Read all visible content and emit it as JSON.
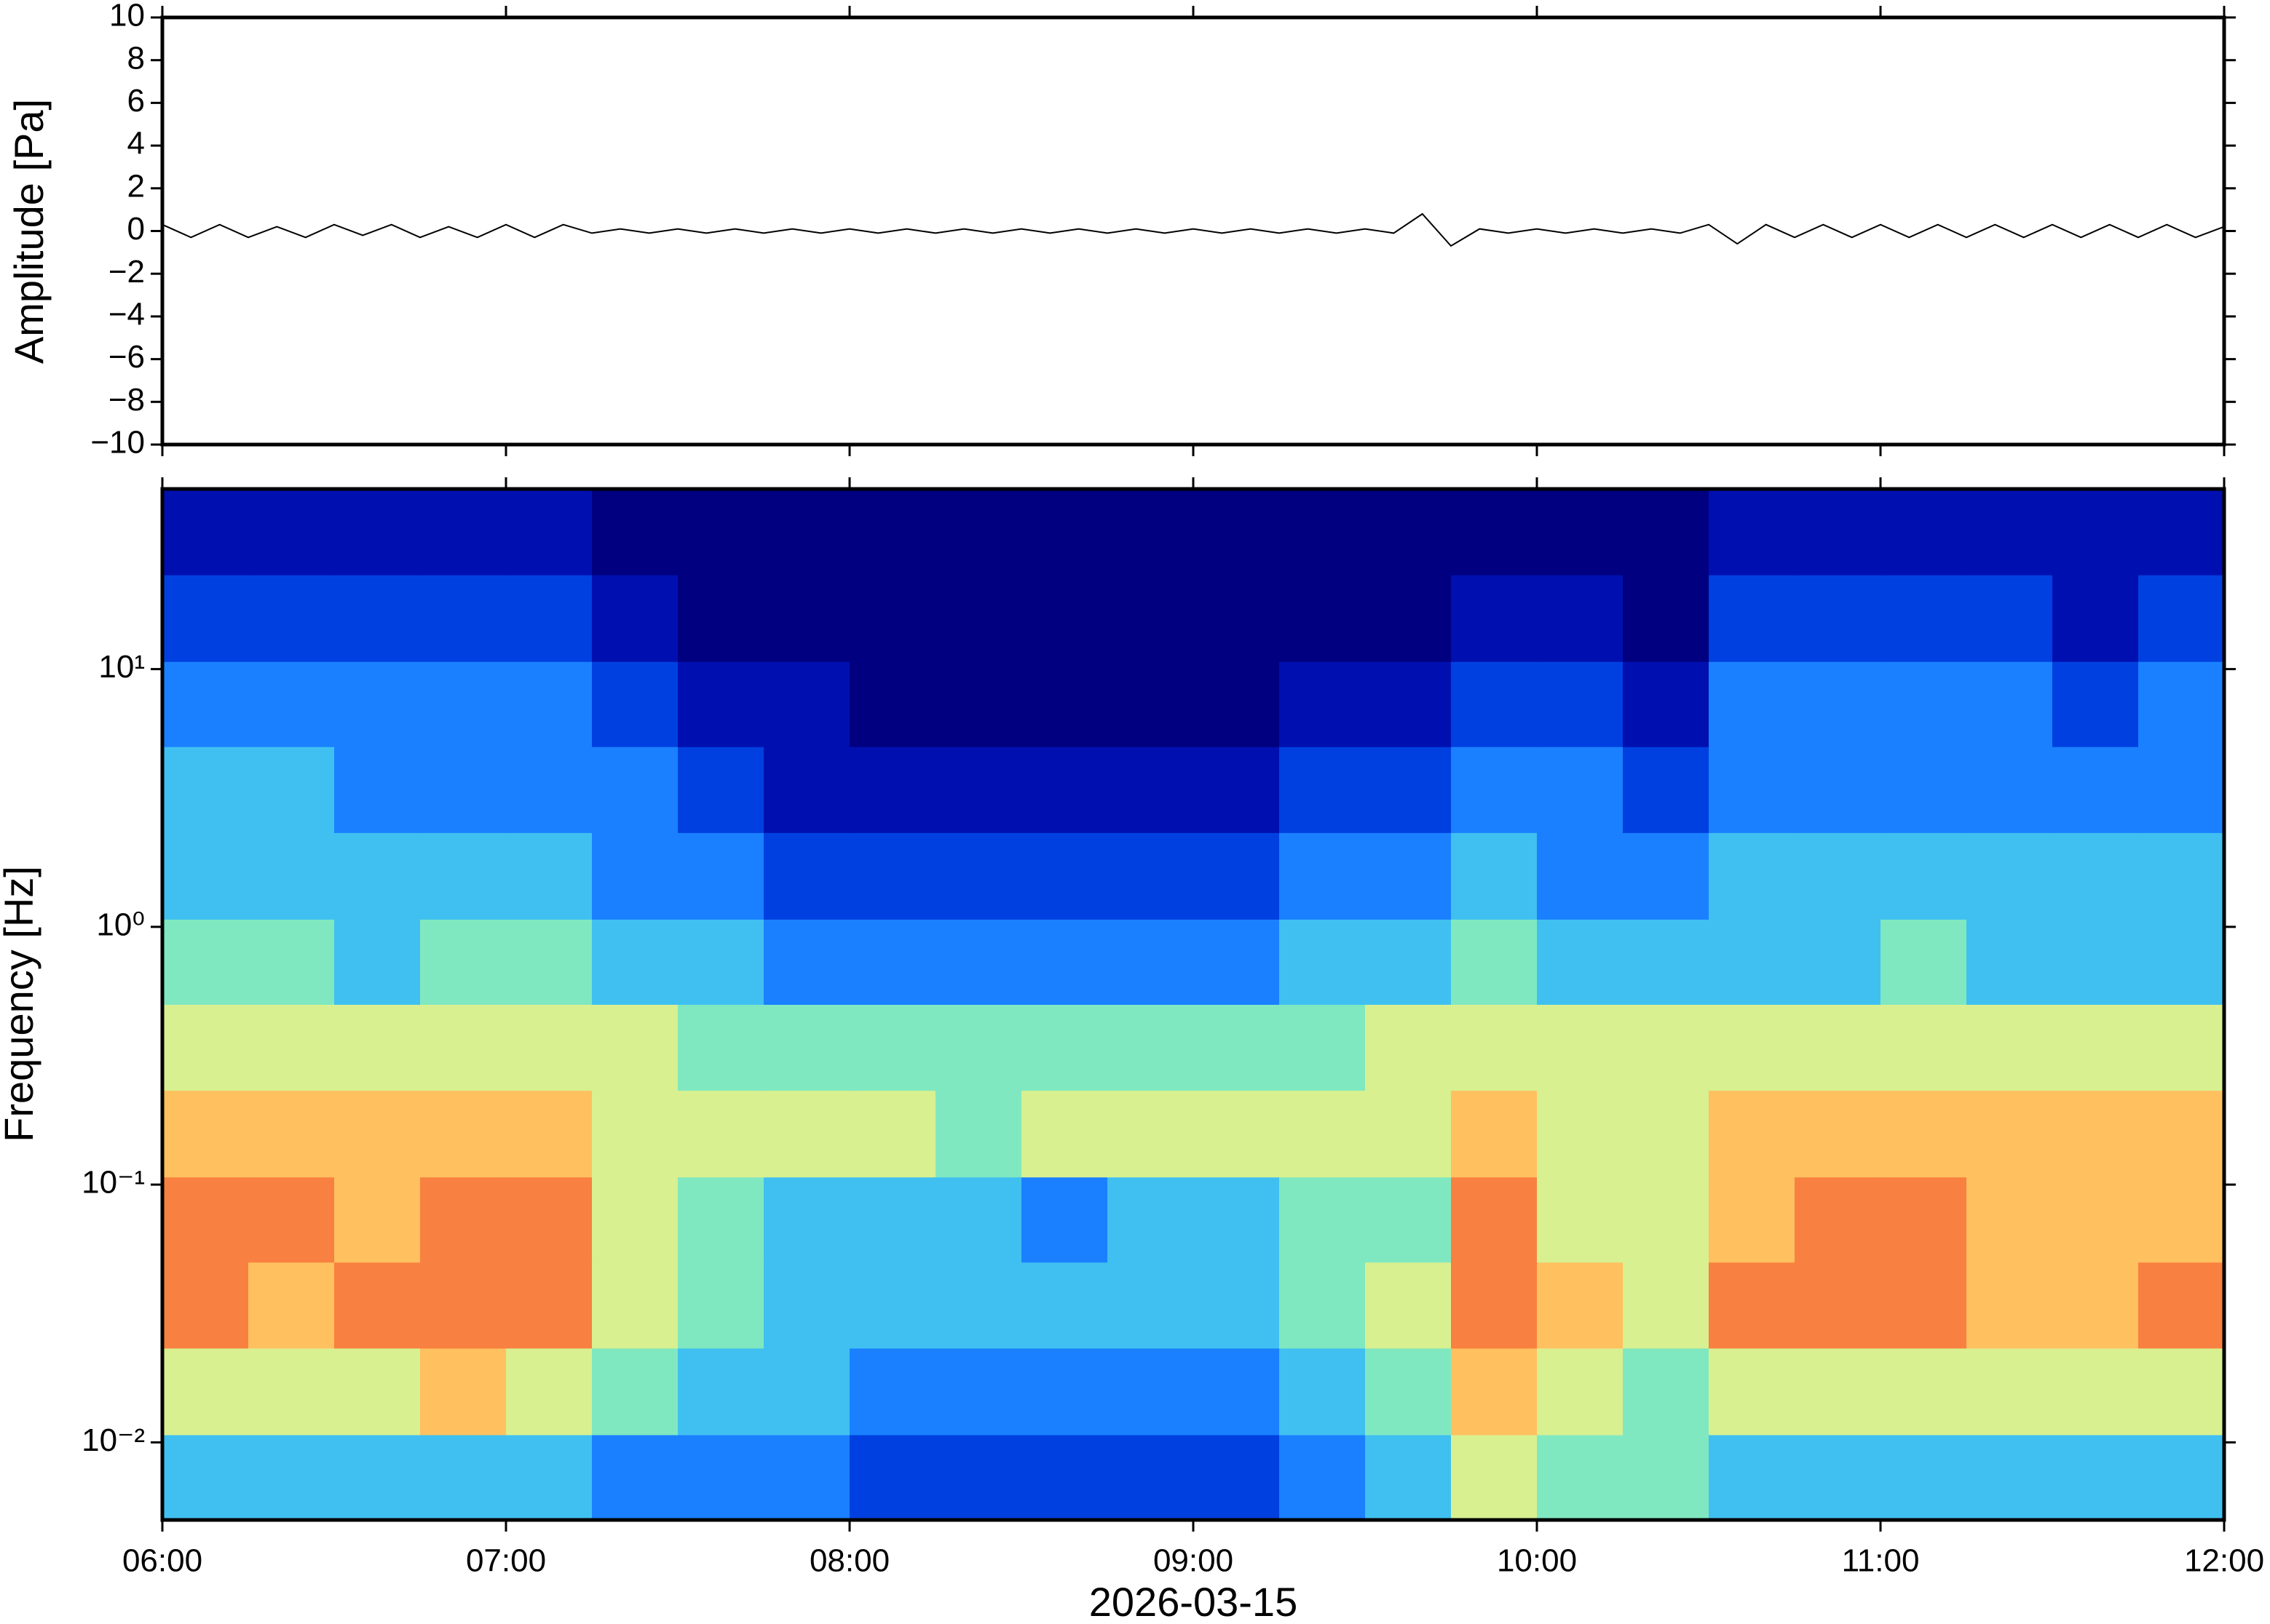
{
  "chart_data": [
    {
      "type": "line",
      "y_label": "Amplitude [Pa]",
      "color": "#000000",
      "x": [
        "06:00",
        "06:05",
        "06:10",
        "06:15",
        "06:20",
        "06:25",
        "06:30",
        "06:35",
        "06:40",
        "06:45",
        "06:50",
        "06:55",
        "07:00",
        "07:05",
        "07:10",
        "07:15",
        "07:20",
        "07:25",
        "07:30",
        "07:35",
        "07:40",
        "07:45",
        "07:50",
        "07:55",
        "08:00",
        "08:05",
        "08:10",
        "08:15",
        "08:20",
        "08:25",
        "08:30",
        "08:35",
        "08:40",
        "08:45",
        "08:50",
        "08:55",
        "09:00",
        "09:05",
        "09:10",
        "09:15",
        "09:20",
        "09:25",
        "09:30",
        "09:35",
        "09:40",
        "09:45",
        "09:50",
        "09:55",
        "10:00",
        "10:05",
        "10:10",
        "10:15",
        "10:20",
        "10:25",
        "10:30",
        "10:35",
        "10:40",
        "10:45",
        "10:50",
        "10:55",
        "11:00",
        "11:05",
        "11:10",
        "11:15",
        "11:20",
        "11:25",
        "11:30",
        "11:35",
        "11:40",
        "11:45",
        "11:50",
        "11:55",
        "12:00"
      ],
      "values": [
        0.3,
        -0.3,
        0.3,
        -0.3,
        0.2,
        -0.3,
        0.3,
        -0.2,
        0.3,
        -0.3,
        0.2,
        -0.3,
        0.3,
        -0.3,
        0.3,
        -0.1,
        0.1,
        -0.1,
        0.1,
        -0.1,
        0.1,
        -0.1,
        0.1,
        -0.1,
        0.1,
        -0.1,
        0.1,
        -0.1,
        0.1,
        -0.1,
        0.1,
        -0.1,
        0.1,
        -0.1,
        0.1,
        -0.1,
        0.1,
        -0.1,
        0.1,
        -0.1,
        0.1,
        -0.1,
        0.1,
        -0.1,
        0.8,
        -0.7,
        0.1,
        -0.1,
        0.1,
        -0.1,
        0.1,
        -0.1,
        0.1,
        -0.1,
        0.3,
        -0.6,
        0.3,
        -0.3,
        0.3,
        -0.3,
        0.3,
        -0.3,
        0.3,
        -0.3,
        0.3,
        -0.3,
        0.3,
        -0.3,
        0.3,
        -0.3,
        0.3,
        -0.3,
        0.2
      ],
      "xlim": [
        "06:00",
        "12:00"
      ],
      "ylim": [
        -10,
        10
      ],
      "yticks": [
        {
          "value": -10,
          "label": "−10"
        },
        {
          "value": -8,
          "label": "−8"
        },
        {
          "value": -6,
          "label": "−6"
        },
        {
          "value": -4,
          "label": "−4"
        },
        {
          "value": -2,
          "label": "−2"
        },
        0,
        2,
        4,
        6,
        8,
        10
      ]
    },
    {
      "type": "heatmap",
      "y_label": "Frequency [Hz]",
      "x_label": "2026-03-15",
      "log_y": true,
      "x": [
        "06:00",
        "06:15",
        "06:30",
        "06:45",
        "07:00",
        "07:15",
        "07:30",
        "07:45",
        "08:00",
        "08:15",
        "08:30",
        "08:45",
        "09:00",
        "09:15",
        "09:30",
        "09:45",
        "10:00",
        "10:15",
        "10:30",
        "10:45",
        "11:00",
        "11:15",
        "11:30",
        "11:45"
      ],
      "y_bins": [
        0.005,
        0.0107,
        0.0232,
        0.05,
        0.107,
        0.232,
        0.5,
        1.07,
        2.32,
        5,
        10.7,
        23.2,
        50
      ],
      "values": [
        [
          4,
          4,
          4,
          4,
          4,
          3,
          3,
          3,
          2,
          2,
          2,
          2,
          2,
          3,
          4,
          6,
          5,
          5,
          4,
          4,
          4,
          4,
          4,
          4
        ],
        [
          6,
          6,
          6,
          7,
          6,
          5,
          4,
          4,
          3,
          3,
          3,
          3,
          3,
          4,
          5,
          7,
          6,
          5,
          6,
          6,
          6,
          6,
          6,
          6
        ],
        [
          8,
          7,
          8,
          8,
          8,
          6,
          5,
          4,
          4,
          4,
          4,
          4,
          4,
          5,
          6,
          8,
          7,
          6,
          8,
          8,
          8,
          7,
          7,
          8
        ],
        [
          8,
          8,
          7,
          8,
          8,
          6,
          5,
          4,
          4,
          4,
          3,
          4,
          4,
          5,
          5,
          8,
          6,
          6,
          7,
          8,
          8,
          7,
          7,
          7
        ],
        [
          7,
          7,
          7,
          7,
          7,
          6,
          6,
          6,
          6,
          5,
          6,
          6,
          6,
          6,
          6,
          7,
          6,
          6,
          7,
          7,
          7,
          7,
          7,
          7
        ],
        [
          6,
          6,
          6,
          6,
          6,
          6,
          5,
          5,
          5,
          5,
          5,
          5,
          5,
          5,
          6,
          6,
          6,
          6,
          6,
          6,
          6,
          6,
          6,
          6
        ],
        [
          5,
          5,
          4,
          5,
          5,
          4,
          4,
          3,
          3,
          3,
          3,
          3,
          3,
          4,
          4,
          5,
          4,
          4,
          4,
          4,
          5,
          4,
          4,
          4
        ],
        [
          4,
          4,
          4,
          4,
          4,
          3,
          3,
          2,
          2,
          2,
          2,
          2,
          2,
          3,
          3,
          4,
          3,
          3,
          4,
          4,
          4,
          4,
          4,
          4
        ],
        [
          4,
          4,
          3,
          3,
          3,
          3,
          2,
          1,
          1,
          1,
          1,
          1,
          1,
          2,
          2,
          3,
          3,
          2,
          3,
          3,
          3,
          3,
          3,
          3
        ],
        [
          3,
          3,
          3,
          3,
          3,
          2,
          1,
          1,
          0,
          0,
          0,
          0,
          0,
          1,
          1,
          2,
          2,
          1,
          3,
          3,
          3,
          3,
          2,
          3
        ],
        [
          2,
          2,
          2,
          2,
          2,
          1,
          0,
          0,
          0,
          0,
          0,
          0,
          0,
          0,
          0,
          1,
          1,
          0,
          2,
          2,
          2,
          2,
          1,
          2
        ],
        [
          1,
          1,
          1,
          1,
          1,
          0,
          0,
          0,
          0,
          0,
          0,
          0,
          0,
          0,
          0,
          0,
          0,
          0,
          1,
          1,
          1,
          1,
          1,
          1
        ]
      ],
      "colormap": [
        "#000080",
        "#0010b0",
        "#0040e0",
        "#1a80ff",
        "#40c0f0",
        "#80e8c0",
        "#d8f090",
        "#ffc060",
        "#f88040",
        "#e04020",
        "#a00000"
      ],
      "xlim": [
        "06:00",
        "12:00"
      ],
      "xticks": [
        "06:00",
        "07:00",
        "08:00",
        "09:00",
        "10:00",
        "11:00",
        "12:00"
      ],
      "ylim": [
        0.005,
        50
      ],
      "yticks": [
        {
          "value": 0.01,
          "label": "10⁻²"
        },
        {
          "value": 0.1,
          "label": "10⁻¹"
        },
        {
          "value": 1,
          "label": "10⁰"
        },
        {
          "value": 10,
          "label": "10¹"
        }
      ]
    }
  ]
}
